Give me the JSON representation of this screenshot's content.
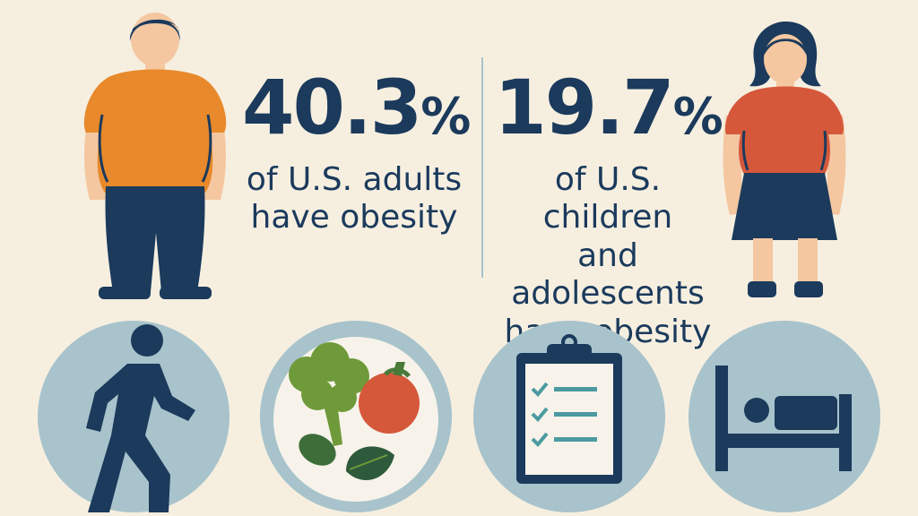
{
  "adults": {
    "percent_value": "40.3",
    "percent_sign": "%",
    "line1": "of U.S. adults",
    "line2": "have obesity"
  },
  "children": {
    "percent_value": "19.7",
    "percent_sign": "%",
    "line1": "of U.S. children",
    "line2": "and adolescents",
    "line3": "have obesity"
  },
  "icons": [
    "walking-person-icon",
    "healthy-food-plate-icon",
    "checklist-clipboard-icon",
    "bed-sleep-icon"
  ],
  "colors": {
    "background": "#f6efe0",
    "navy": "#1b3a5c",
    "circle": "#a8c3cb",
    "adult_shirt": "#e8892b",
    "child_shirt": "#d6583a",
    "skin": "#f4c7a1"
  }
}
